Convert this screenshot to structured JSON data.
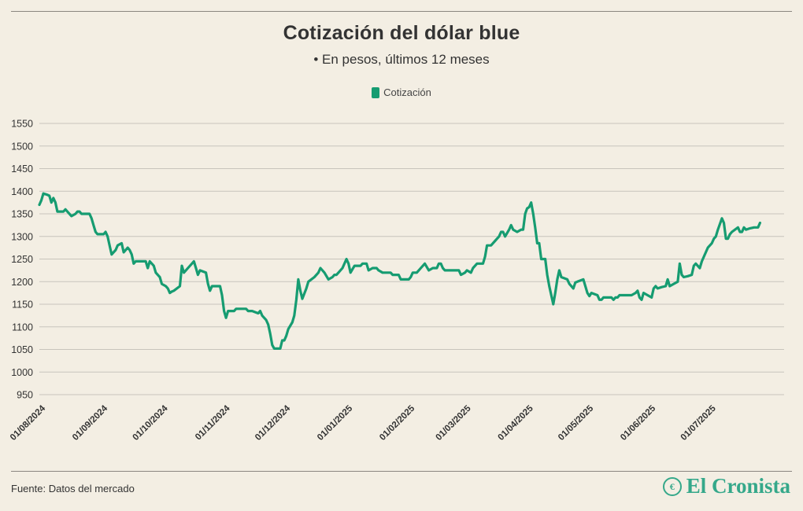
{
  "header": {
    "title": "Cotización del dólar blue",
    "subtitle": "• En pesos, últimos 12 meses"
  },
  "legend": {
    "label": "Cotización"
  },
  "footer": {
    "source": "Fuente: Datos del mercado",
    "brand": "El Cronista",
    "brand_icon": "el-cronista-logo-icon"
  },
  "colors": {
    "line": "#169c71",
    "grid": "#c8c4bc",
    "background": "#f3eee3",
    "brand": "#35a88a"
  },
  "chart_data": {
    "type": "line",
    "title": "Cotización del dólar blue",
    "subtitle": "• En pesos, últimos 12 meses",
    "xlabel": "",
    "ylabel": "",
    "ylim": [
      950,
      1550
    ],
    "yticks": [
      950,
      1000,
      1050,
      1100,
      1150,
      1200,
      1250,
      1300,
      1350,
      1400,
      1450,
      1500,
      1550
    ],
    "xlim": [
      "2024-08-01",
      "2025-08-07"
    ],
    "xticks": [
      "01/08/2024",
      "01/09/2024",
      "01/10/2024",
      "01/11/2024",
      "01/12/2024",
      "01/01/2025",
      "01/02/2025",
      "01/03/2025",
      "01/04/2025",
      "01/05/2025",
      "01/06/2025",
      "01/07/2025"
    ],
    "grid": true,
    "legend_position": "top-center",
    "series": [
      {
        "name": "Cotización",
        "color": "#169c71",
        "points": [
          [
            "2024-08-01",
            1370
          ],
          [
            "2024-08-02",
            1380
          ],
          [
            "2024-08-03",
            1395
          ],
          [
            "2024-08-05",
            1392
          ],
          [
            "2024-08-06",
            1390
          ],
          [
            "2024-08-07",
            1375
          ],
          [
            "2024-08-08",
            1385
          ],
          [
            "2024-08-09",
            1375
          ],
          [
            "2024-08-10",
            1355
          ],
          [
            "2024-08-13",
            1355
          ],
          [
            "2024-08-14",
            1360
          ],
          [
            "2024-08-17",
            1345
          ],
          [
            "2024-08-19",
            1350
          ],
          [
            "2024-08-20",
            1355
          ],
          [
            "2024-08-21",
            1355
          ],
          [
            "2024-08-22",
            1350
          ],
          [
            "2024-08-26",
            1350
          ],
          [
            "2024-08-27",
            1340
          ],
          [
            "2024-08-28",
            1325
          ],
          [
            "2024-08-29",
            1310
          ],
          [
            "2024-08-30",
            1305
          ],
          [
            "2024-09-02",
            1305
          ],
          [
            "2024-09-03",
            1310
          ],
          [
            "2024-09-04",
            1300
          ],
          [
            "2024-09-05",
            1280
          ],
          [
            "2024-09-06",
            1260
          ],
          [
            "2024-09-08",
            1270
          ],
          [
            "2024-09-09",
            1280
          ],
          [
            "2024-09-11",
            1285
          ],
          [
            "2024-09-12",
            1265
          ],
          [
            "2024-09-14",
            1275
          ],
          [
            "2024-09-15",
            1270
          ],
          [
            "2024-09-16",
            1260
          ],
          [
            "2024-09-17",
            1240
          ],
          [
            "2024-09-18",
            1245
          ],
          [
            "2024-09-23",
            1245
          ],
          [
            "2024-09-24",
            1230
          ],
          [
            "2024-09-25",
            1245
          ],
          [
            "2024-09-27",
            1235
          ],
          [
            "2024-09-28",
            1220
          ],
          [
            "2024-09-30",
            1210
          ],
          [
            "2024-10-01",
            1195
          ],
          [
            "2024-10-03",
            1190
          ],
          [
            "2024-10-04",
            1185
          ],
          [
            "2024-10-05",
            1175
          ],
          [
            "2024-10-06",
            1178
          ],
          [
            "2024-10-07",
            1180
          ],
          [
            "2024-10-10",
            1190
          ],
          [
            "2024-10-11",
            1235
          ],
          [
            "2024-10-12",
            1220
          ],
          [
            "2024-10-14",
            1230
          ],
          [
            "2024-10-16",
            1240
          ],
          [
            "2024-10-17",
            1245
          ],
          [
            "2024-10-18",
            1230
          ],
          [
            "2024-10-19",
            1215
          ],
          [
            "2024-10-20",
            1225
          ],
          [
            "2024-10-23",
            1220
          ],
          [
            "2024-10-24",
            1195
          ],
          [
            "2024-10-25",
            1180
          ],
          [
            "2024-10-26",
            1190
          ],
          [
            "2024-10-30",
            1190
          ],
          [
            "2024-10-31",
            1170
          ],
          [
            "2024-11-01",
            1135
          ],
          [
            "2024-11-02",
            1120
          ],
          [
            "2024-11-03",
            1135
          ],
          [
            "2024-11-06",
            1135
          ],
          [
            "2024-11-07",
            1140
          ],
          [
            "2024-11-12",
            1140
          ],
          [
            "2024-11-13",
            1135
          ],
          [
            "2024-11-15",
            1135
          ],
          [
            "2024-11-18",
            1130
          ],
          [
            "2024-11-19",
            1135
          ],
          [
            "2024-11-20",
            1125
          ],
          [
            "2024-11-22",
            1115
          ],
          [
            "2024-11-23",
            1105
          ],
          [
            "2024-11-24",
            1085
          ],
          [
            "2024-11-25",
            1060
          ],
          [
            "2024-11-26",
            1052
          ],
          [
            "2024-11-29",
            1052
          ],
          [
            "2024-11-30",
            1070
          ],
          [
            "2024-12-01",
            1070
          ],
          [
            "2024-12-02",
            1080
          ],
          [
            "2024-12-03",
            1095
          ],
          [
            "2024-12-05",
            1110
          ],
          [
            "2024-12-06",
            1125
          ],
          [
            "2024-12-07",
            1160
          ],
          [
            "2024-12-08",
            1205
          ],
          [
            "2024-12-09",
            1180
          ],
          [
            "2024-12-10",
            1162
          ],
          [
            "2024-12-12",
            1185
          ],
          [
            "2024-12-13",
            1200
          ],
          [
            "2024-12-16",
            1210
          ],
          [
            "2024-12-18",
            1220
          ],
          [
            "2024-12-19",
            1230
          ],
          [
            "2024-12-21",
            1220
          ],
          [
            "2024-12-23",
            1205
          ],
          [
            "2024-12-25",
            1210
          ],
          [
            "2024-12-26",
            1215
          ],
          [
            "2024-12-27",
            1215
          ],
          [
            "2024-12-28",
            1220
          ],
          [
            "2024-12-30",
            1230
          ],
          [
            "2025-01-01",
            1250
          ],
          [
            "2025-01-02",
            1240
          ],
          [
            "2025-01-03",
            1220
          ],
          [
            "2025-01-05",
            1235
          ],
          [
            "2025-01-08",
            1235
          ],
          [
            "2025-01-09",
            1240
          ],
          [
            "2025-01-11",
            1240
          ],
          [
            "2025-01-12",
            1225
          ],
          [
            "2025-01-14",
            1230
          ],
          [
            "2025-01-16",
            1230
          ],
          [
            "2025-01-17",
            1225
          ],
          [
            "2025-01-19",
            1220
          ],
          [
            "2025-01-23",
            1220
          ],
          [
            "2025-01-24",
            1215
          ],
          [
            "2025-01-27",
            1215
          ],
          [
            "2025-01-28",
            1205
          ],
          [
            "2025-02-01",
            1205
          ],
          [
            "2025-02-02",
            1210
          ],
          [
            "2025-02-03",
            1220
          ],
          [
            "2025-02-05",
            1220
          ],
          [
            "2025-02-07",
            1230
          ],
          [
            "2025-02-09",
            1240
          ],
          [
            "2025-02-11",
            1225
          ],
          [
            "2025-02-13",
            1230
          ],
          [
            "2025-02-15",
            1230
          ],
          [
            "2025-02-16",
            1240
          ],
          [
            "2025-02-17",
            1240
          ],
          [
            "2025-02-18",
            1230
          ],
          [
            "2025-02-19",
            1225
          ],
          [
            "2025-02-26",
            1225
          ],
          [
            "2025-02-27",
            1215
          ],
          [
            "2025-03-01",
            1220
          ],
          [
            "2025-03-02",
            1225
          ],
          [
            "2025-03-04",
            1220
          ],
          [
            "2025-03-05",
            1230
          ],
          [
            "2025-03-07",
            1240
          ],
          [
            "2025-03-10",
            1240
          ],
          [
            "2025-03-11",
            1255
          ],
          [
            "2025-03-12",
            1280
          ],
          [
            "2025-03-14",
            1280
          ],
          [
            "2025-03-16",
            1290
          ],
          [
            "2025-03-17",
            1295
          ],
          [
            "2025-03-18",
            1300
          ],
          [
            "2025-03-19",
            1310
          ],
          [
            "2025-03-20",
            1310
          ],
          [
            "2025-03-21",
            1300
          ],
          [
            "2025-03-23",
            1315
          ],
          [
            "2025-03-24",
            1325
          ],
          [
            "2025-03-25",
            1315
          ],
          [
            "2025-03-27",
            1310
          ],
          [
            "2025-03-29",
            1315
          ],
          [
            "2025-03-30",
            1315
          ],
          [
            "2025-03-31",
            1350
          ],
          [
            "2025-04-01",
            1362
          ],
          [
            "2025-04-02",
            1365
          ],
          [
            "2025-04-03",
            1375
          ],
          [
            "2025-04-04",
            1350
          ],
          [
            "2025-04-05",
            1320
          ],
          [
            "2025-04-06",
            1285
          ],
          [
            "2025-04-07",
            1285
          ],
          [
            "2025-04-08",
            1250
          ],
          [
            "2025-04-10",
            1250
          ],
          [
            "2025-04-11",
            1215
          ],
          [
            "2025-04-12",
            1190
          ],
          [
            "2025-04-14",
            1150
          ],
          [
            "2025-04-15",
            1175
          ],
          [
            "2025-04-16",
            1205
          ],
          [
            "2025-04-17",
            1225
          ],
          [
            "2025-04-18",
            1210
          ],
          [
            "2025-04-21",
            1205
          ],
          [
            "2025-04-22",
            1195
          ],
          [
            "2025-04-24",
            1185
          ],
          [
            "2025-04-25",
            1198
          ],
          [
            "2025-04-26",
            1200
          ],
          [
            "2025-04-29",
            1205
          ],
          [
            "2025-05-01",
            1175
          ],
          [
            "2025-05-02",
            1168
          ],
          [
            "2025-05-03",
            1175
          ],
          [
            "2025-05-06",
            1170
          ],
          [
            "2025-05-07",
            1160
          ],
          [
            "2025-05-08",
            1160
          ],
          [
            "2025-05-09",
            1165
          ],
          [
            "2025-05-13",
            1165
          ],
          [
            "2025-05-14",
            1160
          ],
          [
            "2025-05-15",
            1165
          ],
          [
            "2025-05-16",
            1165
          ],
          [
            "2025-05-17",
            1170
          ],
          [
            "2025-05-23",
            1170
          ],
          [
            "2025-05-25",
            1175
          ],
          [
            "2025-05-26",
            1180
          ],
          [
            "2025-05-27",
            1165
          ],
          [
            "2025-05-28",
            1160
          ],
          [
            "2025-05-29",
            1175
          ],
          [
            "2025-06-02",
            1165
          ],
          [
            "2025-06-03",
            1185
          ],
          [
            "2025-06-04",
            1190
          ],
          [
            "2025-06-05",
            1185
          ],
          [
            "2025-06-07",
            1188
          ],
          [
            "2025-06-09",
            1190
          ],
          [
            "2025-06-10",
            1205
          ],
          [
            "2025-06-11",
            1190
          ],
          [
            "2025-06-13",
            1195
          ],
          [
            "2025-06-15",
            1200
          ],
          [
            "2025-06-16",
            1240
          ],
          [
            "2025-06-17",
            1215
          ],
          [
            "2025-06-18",
            1210
          ],
          [
            "2025-06-20",
            1212
          ],
          [
            "2025-06-22",
            1215
          ],
          [
            "2025-06-23",
            1235
          ],
          [
            "2025-06-24",
            1240
          ],
          [
            "2025-06-26",
            1230
          ],
          [
            "2025-06-27",
            1245
          ],
          [
            "2025-06-30",
            1275
          ],
          [
            "2025-07-02",
            1285
          ],
          [
            "2025-07-03",
            1295
          ],
          [
            "2025-07-04",
            1300
          ],
          [
            "2025-07-05",
            1315
          ],
          [
            "2025-07-07",
            1340
          ],
          [
            "2025-07-08",
            1330
          ],
          [
            "2025-07-09",
            1295
          ],
          [
            "2025-07-10",
            1295
          ],
          [
            "2025-07-11",
            1305
          ],
          [
            "2025-07-12",
            1310
          ],
          [
            "2025-07-15",
            1320
          ],
          [
            "2025-07-16",
            1310
          ],
          [
            "2025-07-17",
            1310
          ],
          [
            "2025-07-18",
            1320
          ],
          [
            "2025-07-19",
            1315
          ],
          [
            "2025-07-21",
            1318
          ],
          [
            "2025-07-23",
            1320
          ],
          [
            "2025-07-25",
            1320
          ],
          [
            "2025-07-26",
            1330
          ]
        ]
      }
    ]
  }
}
